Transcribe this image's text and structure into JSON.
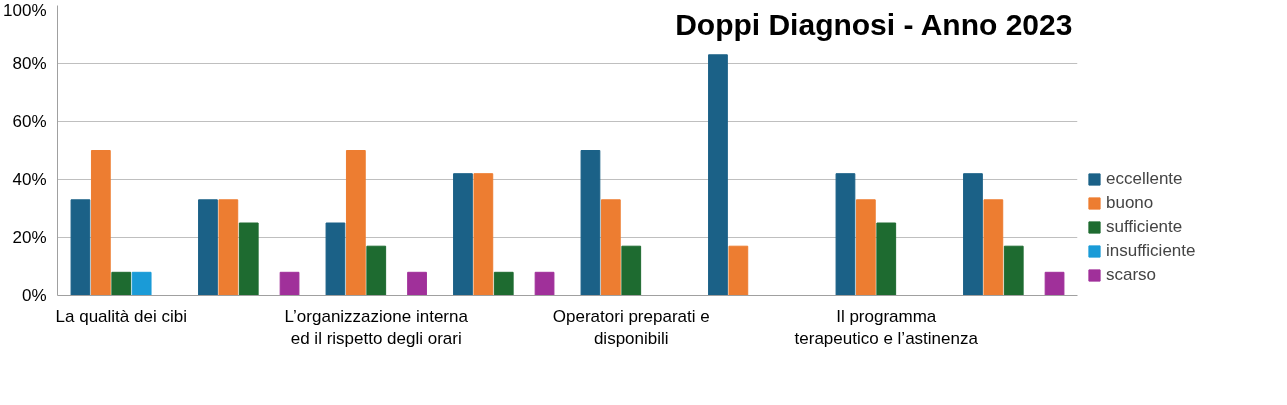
{
  "chart_data": {
    "type": "bar",
    "title": "Doppi Diagnosi - Anno 2023",
    "categories": [
      "La qualità dei cibi",
      null,
      "L’organizzazione interna\ned il rispetto degli orari",
      null,
      "Operatori preparati e\ndisponibili",
      null,
      "Il programma\nterapeutico e l’astinenza",
      null
    ],
    "series": [
      {
        "name": "eccellente",
        "color": "#1b6187",
        "values": [
          33,
          33,
          25,
          42,
          50,
          83,
          42,
          42
        ]
      },
      {
        "name": "buono",
        "color": "#ed7d31",
        "values": [
          50,
          33,
          50,
          42,
          33,
          17,
          33,
          33
        ]
      },
      {
        "name": "sufficiente",
        "color": "#1e6b30",
        "values": [
          8,
          25,
          17,
          8,
          17,
          null,
          25,
          17
        ]
      },
      {
        "name": "insufficiente",
        "color": "#1a9bd7",
        "values": [
          8,
          null,
          null,
          null,
          null,
          null,
          null,
          null
        ]
      },
      {
        "name": "scarso",
        "color": "#a0309a",
        "values": [
          null,
          8,
          8,
          8,
          null,
          null,
          null,
          8
        ]
      }
    ],
    "ylim": [
      0,
      100
    ],
    "yticks": [
      {
        "value": 0,
        "label": "0%"
      },
      {
        "value": 20,
        "label": "20%"
      },
      {
        "value": 40,
        "label": "40%"
      },
      {
        "value": 60,
        "label": "60%"
      },
      {
        "value": 80,
        "label": "80%"
      },
      {
        "value": 100,
        "label": "100%"
      }
    ],
    "grid": "y",
    "legend": "bottom right"
  }
}
